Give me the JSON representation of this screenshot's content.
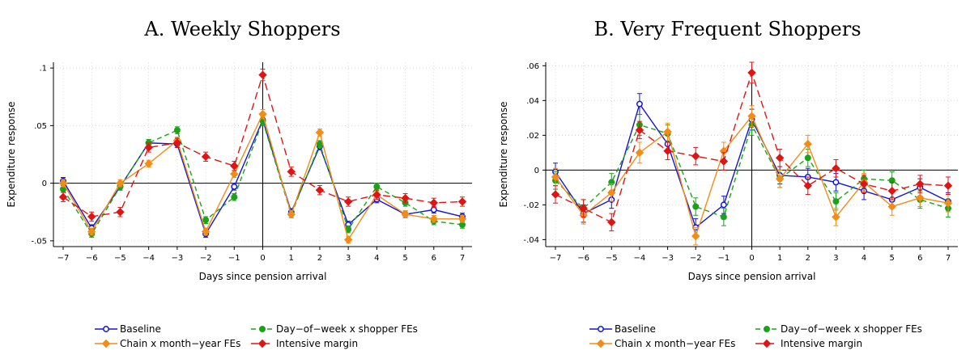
{
  "colors": {
    "baseline": "#1515d4",
    "chain": "#f28c16",
    "dow": "#1aa31a",
    "intensive": "#e01414"
  },
  "legend": {
    "baseline": "Baseline",
    "chain": "Chain x month−year FEs",
    "dow": "Day−of−week x shopper FEs",
    "intensive": "Intensive margin"
  },
  "chart_data": [
    {
      "type": "line",
      "title": "A. Weekly Shoppers",
      "xlabel": "Days since pension arrival",
      "ylabel": "Expenditure response",
      "x": [
        -7,
        -6,
        -5,
        -4,
        -3,
        -2,
        -1,
        0,
        1,
        2,
        3,
        4,
        5,
        6,
        7
      ],
      "xlim": [
        -7,
        7
      ],
      "ylim": [
        -0.055,
        0.105
      ],
      "yticks": [
        -0.05,
        0,
        0.05,
        0.1
      ],
      "ytick_labels": [
        "-.05",
        "0",
        ".05",
        ".1"
      ],
      "xtick_labels": [
        "−7",
        "−6",
        "−5",
        "−4",
        "−3",
        "−2",
        "−1",
        "0",
        "1",
        "2",
        "3",
        "4",
        "5",
        "6",
        "7"
      ],
      "grid": true,
      "legend_position": "bottom",
      "series": [
        {
          "name": "Baseline",
          "key": "baseline",
          "marker": "hollow-circle",
          "dash": "solid",
          "values": [
            0.002,
            -0.039,
            -0.003,
            0.035,
            0.034,
            -0.044,
            -0.003,
            0.055,
            -0.025,
            0.032,
            -0.036,
            -0.014,
            -0.027,
            -0.023,
            -0.029
          ],
          "err": [
            0.003,
            0.003,
            0.003,
            0.003,
            0.003,
            0.003,
            0.003,
            0.004,
            0.003,
            0.003,
            0.003,
            0.003,
            0.003,
            0.003,
            0.003
          ]
        },
        {
          "name": "Day−of−week x shopper FEs",
          "key": "dow",
          "marker": "circle",
          "dash": "dash",
          "values": [
            -0.005,
            -0.044,
            -0.003,
            0.035,
            0.046,
            -0.032,
            -0.012,
            0.054,
            -0.027,
            0.034,
            -0.04,
            -0.003,
            -0.017,
            -0.033,
            -0.036
          ],
          "err": [
            0.003,
            0.003,
            0.003,
            0.003,
            0.003,
            0.003,
            0.003,
            0.004,
            0.003,
            0.003,
            0.003,
            0.003,
            0.003,
            0.003,
            0.003
          ]
        },
        {
          "name": "Chain x month−year FEs",
          "key": "chain",
          "marker": "diamond",
          "dash": "solid",
          "values": [
            0.0,
            -0.042,
            0.0,
            0.017,
            0.037,
            -0.042,
            0.008,
            0.06,
            -0.027,
            0.044,
            -0.049,
            -0.01,
            -0.027,
            -0.031,
            -0.031
          ],
          "err": [
            0.003,
            0.003,
            0.003,
            0.003,
            0.003,
            0.003,
            0.003,
            0.004,
            0.003,
            0.003,
            0.003,
            0.003,
            0.003,
            0.003,
            0.003
          ]
        },
        {
          "name": "Intensive margin",
          "key": "intensive",
          "marker": "diamond",
          "dash": "longdash",
          "values": [
            -0.012,
            -0.029,
            -0.025,
            0.031,
            0.035,
            0.023,
            0.015,
            0.094,
            0.01,
            -0.006,
            -0.016,
            -0.01,
            -0.013,
            -0.017,
            -0.016
          ],
          "err": [
            0.004,
            0.004,
            0.004,
            0.004,
            0.004,
            0.004,
            0.004,
            0.005,
            0.004,
            0.004,
            0.004,
            0.004,
            0.004,
            0.004,
            0.004
          ]
        }
      ]
    },
    {
      "type": "line",
      "title": "B. Very Frequent Shoppers",
      "xlabel": "Days since pension arrival",
      "ylabel": "Expenditure response",
      "x": [
        -7,
        -6,
        -5,
        -4,
        -3,
        -2,
        -1,
        0,
        1,
        2,
        3,
        4,
        5,
        6,
        7
      ],
      "xlim": [
        -7,
        7
      ],
      "ylim": [
        -0.044,
        0.062
      ],
      "yticks": [
        -0.04,
        -0.02,
        0,
        0.02,
        0.04,
        0.06
      ],
      "ytick_labels": [
        "-.04",
        "-.02",
        "0",
        ".02",
        ".04",
        ".06"
      ],
      "xtick_labels": [
        "−7",
        "−6",
        "−5",
        "−4",
        "−3",
        "−2",
        "−1",
        "0",
        "1",
        "2",
        "3",
        "4",
        "5",
        "6",
        "7"
      ],
      "grid": true,
      "legend_position": "bottom",
      "series": [
        {
          "name": "Baseline",
          "key": "baseline",
          "marker": "hollow-circle",
          "dash": "solid",
          "values": [
            -0.001,
            -0.025,
            -0.017,
            0.038,
            0.015,
            -0.033,
            -0.02,
            0.029,
            -0.003,
            -0.004,
            -0.007,
            -0.012,
            -0.017,
            -0.01,
            -0.018
          ],
          "err": [
            0.005,
            0.005,
            0.005,
            0.006,
            0.005,
            0.005,
            0.005,
            0.006,
            0.005,
            0.005,
            0.005,
            0.005,
            0.005,
            0.005,
            0.005
          ]
        },
        {
          "name": "Day−of−week x shopper FEs",
          "key": "dow",
          "marker": "circle",
          "dash": "dash",
          "values": [
            -0.006,
            -0.022,
            -0.007,
            0.026,
            0.021,
            -0.021,
            -0.027,
            0.026,
            -0.005,
            0.007,
            -0.018,
            -0.005,
            -0.006,
            -0.017,
            -0.022
          ],
          "err": [
            0.005,
            0.005,
            0.005,
            0.006,
            0.005,
            0.005,
            0.005,
            0.006,
            0.005,
            0.005,
            0.005,
            0.005,
            0.005,
            0.005,
            0.005
          ]
        },
        {
          "name": "Chain x month−year FEs",
          "key": "chain",
          "marker": "diamond",
          "dash": "solid",
          "values": [
            -0.004,
            -0.026,
            -0.013,
            0.01,
            0.022,
            -0.038,
            0.011,
            0.031,
            -0.005,
            0.015,
            -0.027,
            -0.007,
            -0.021,
            -0.016,
            -0.019
          ],
          "err": [
            0.005,
            0.005,
            0.005,
            0.006,
            0.005,
            0.005,
            0.005,
            0.006,
            0.005,
            0.005,
            0.005,
            0.005,
            0.005,
            0.005,
            0.005
          ]
        },
        {
          "name": "Intensive margin",
          "key": "intensive",
          "marker": "diamond",
          "dash": "longdash",
          "values": [
            -0.014,
            -0.022,
            -0.03,
            0.023,
            0.011,
            0.008,
            0.005,
            0.056,
            0.007,
            -0.009,
            0.001,
            -0.008,
            -0.012,
            -0.008,
            -0.009
          ],
          "err": [
            0.005,
            0.005,
            0.005,
            0.005,
            0.005,
            0.005,
            0.005,
            0.006,
            0.005,
            0.005,
            0.005,
            0.005,
            0.005,
            0.005,
            0.005
          ]
        }
      ]
    }
  ]
}
